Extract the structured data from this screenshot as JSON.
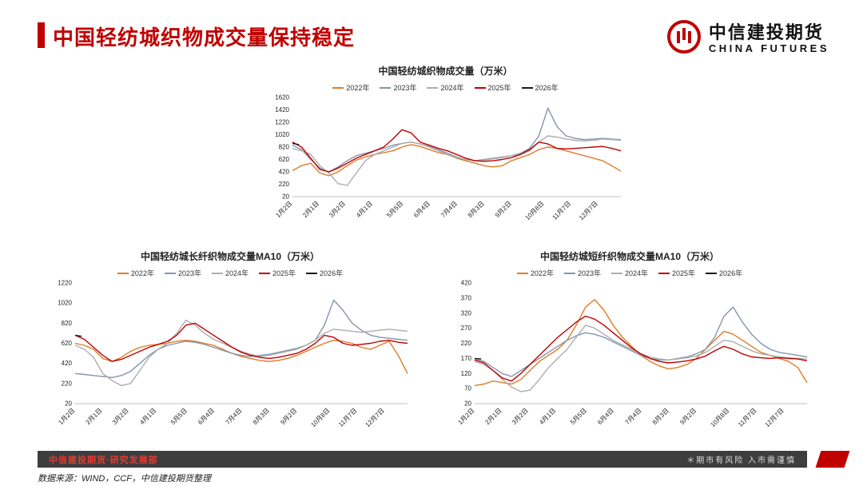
{
  "page": {
    "title": "中国轻纺城织物成交量保持稳定",
    "logo_cn": "中信建投期货",
    "logo_en": "CHINA FUTURES",
    "footer_left": "中信建投期货·研究发展部",
    "footer_right": "＊期市有风险  入市需谨慎",
    "source_note": "数据来源：WIND，CCF，中信建投期货整理"
  },
  "colors": {
    "accent": "#C00000",
    "footer_bar": "#3D3D3D"
  },
  "chart_data": [
    {
      "type": "line",
      "title": "中国轻纺城织物成交量（万米）",
      "xlabel": "",
      "ylabel": "",
      "grid": false,
      "legend_position": "top",
      "ylim": [
        20,
        1620
      ],
      "yticks": [
        20,
        220,
        420,
        620,
        820,
        1020,
        1220,
        1420,
        1620
      ],
      "x_ticks": [
        "1月2日",
        "2月1日",
        "3月2日",
        "4月1日",
        "5月5日",
        "6月4日",
        "7月4日",
        "8月3日",
        "9月2日",
        "10月8日",
        "11月7日",
        "12月7日"
      ],
      "x_tick_pos": [
        0,
        0.082,
        0.162,
        0.245,
        0.338,
        0.42,
        0.503,
        0.585,
        0.668,
        0.767,
        0.849,
        0.931
      ],
      "series_colors": [
        "#E07B28",
        "#8496AE",
        "#ADADAD",
        "#C00000",
        "#1A1A1A"
      ],
      "series": [
        {
          "name": "2022年",
          "values": [
            440,
            520,
            560,
            400,
            360,
            420,
            520,
            610,
            660,
            700,
            730,
            760,
            820,
            860,
            830,
            780,
            730,
            700,
            640,
            600,
            560,
            520,
            500,
            520,
            600,
            650,
            700,
            780,
            820,
            800,
            760,
            720,
            680,
            640,
            600,
            520,
            430
          ]
        },
        {
          "name": "2023年",
          "values": [
            850,
            780,
            620,
            480,
            420,
            500,
            600,
            680,
            720,
            760,
            800,
            850,
            880,
            900,
            870,
            830,
            780,
            720,
            660,
            620,
            600,
            620,
            640,
            660,
            680,
            720,
            800,
            1000,
            1450,
            1150,
            1000,
            960,
            940,
            950,
            960,
            950,
            940
          ]
        },
        {
          "name": "2024年",
          "values": [
            800,
            760,
            700,
            520,
            400,
            230,
            200,
            400,
            600,
            700,
            760,
            820,
            880,
            900,
            870,
            820,
            760,
            700,
            650,
            620,
            600,
            610,
            630,
            650,
            680,
            700,
            760,
            900,
            1000,
            980,
            950,
            930,
            920,
            930,
            950,
            940,
            930
          ]
        },
        {
          "name": "2025年",
          "values": [
            900,
            820,
            640,
            460,
            420,
            480,
            560,
            640,
            700,
            760,
            820,
            950,
            1100,
            1050,
            900,
            850,
            800,
            760,
            700,
            640,
            600,
            590,
            600,
            620,
            650,
            700,
            780,
            900,
            870,
            800,
            790,
            800,
            810,
            820,
            830,
            800,
            760
          ]
        },
        {
          "name": "2026年",
          "values": [
            880,
            860
          ],
          "span": [
            0,
            0.02
          ]
        }
      ]
    },
    {
      "type": "line",
      "title": "中国轻纺城长纤织物成交量MA10（万米）",
      "xlabel": "",
      "ylabel": "",
      "grid": false,
      "legend_position": "top",
      "ylim": [
        20,
        1220
      ],
      "yticks": [
        20,
        220,
        420,
        620,
        820,
        1020,
        1220
      ],
      "x_ticks": [
        "1月2日",
        "2月1日",
        "3月2日",
        "4月1日",
        "5月5日",
        "6月4日",
        "7月4日",
        "8月3日",
        "9月2日",
        "10月8日",
        "11月7日",
        "12月7日"
      ],
      "x_tick_pos": [
        0,
        0.082,
        0.162,
        0.245,
        0.338,
        0.42,
        0.503,
        0.585,
        0.668,
        0.767,
        0.849,
        0.931
      ],
      "series_colors": [
        "#E07B28",
        "#8496AE",
        "#ADADAD",
        "#C00000",
        "#1A1A1A"
      ],
      "series": [
        {
          "name": "2022年",
          "values": [
            620,
            600,
            560,
            470,
            440,
            480,
            540,
            580,
            600,
            610,
            620,
            640,
            650,
            640,
            620,
            600,
            560,
            520,
            490,
            470,
            450,
            440,
            450,
            470,
            500,
            540,
            580,
            620,
            650,
            640,
            620,
            580,
            560,
            600,
            640,
            500,
            320
          ]
        },
        {
          "name": "2023年",
          "values": [
            320,
            310,
            300,
            290,
            280,
            300,
            340,
            420,
            500,
            560,
            600,
            620,
            640,
            630,
            610,
            580,
            550,
            520,
            500,
            490,
            500,
            510,
            530,
            550,
            570,
            600,
            650,
            800,
            1050,
            950,
            820,
            750,
            700,
            680,
            670,
            660,
            650
          ]
        },
        {
          "name": "2024年",
          "values": [
            600,
            560,
            480,
            320,
            250,
            200,
            220,
            350,
            480,
            560,
            620,
            720,
            850,
            800,
            720,
            660,
            620,
            580,
            540,
            510,
            490,
            500,
            520,
            540,
            560,
            600,
            650,
            720,
            760,
            750,
            740,
            730,
            740,
            750,
            760,
            750,
            740
          ]
        },
        {
          "name": "2025年",
          "values": [
            700,
            660,
            580,
            500,
            440,
            460,
            500,
            540,
            580,
            610,
            640,
            700,
            800,
            820,
            760,
            700,
            640,
            580,
            530,
            500,
            480,
            470,
            480,
            500,
            520,
            560,
            620,
            700,
            680,
            620,
            600,
            610,
            620,
            640,
            650,
            630,
            620
          ]
        },
        {
          "name": "2026年",
          "values": [
            700,
            690
          ],
          "span": [
            0,
            0.02
          ]
        }
      ]
    },
    {
      "type": "line",
      "title": "中国轻纺城短纤织物成交量MA10（万米）",
      "xlabel": "",
      "ylabel": "",
      "grid": false,
      "legend_position": "top",
      "ylim": [
        20,
        420
      ],
      "yticks": [
        20,
        70,
        120,
        170,
        220,
        270,
        320,
        370,
        420
      ],
      "x_ticks": [
        "1月2日",
        "2月1日",
        "3月2日",
        "4月1日",
        "5月5日",
        "6月4日",
        "7月4日",
        "8月3日",
        "9月2日",
        "10月8日",
        "11月7日",
        "12月7日"
      ],
      "x_tick_pos": [
        0,
        0.082,
        0.162,
        0.245,
        0.338,
        0.42,
        0.503,
        0.585,
        0.668,
        0.767,
        0.849,
        0.931
      ],
      "series_colors": [
        "#E07B28",
        "#8496AE",
        "#ADADAD",
        "#C00000",
        "#1A1A1A"
      ],
      "series": [
        {
          "name": "2022年",
          "values": [
            80,
            85,
            95,
            90,
            85,
            100,
            130,
            160,
            180,
            200,
            230,
            280,
            340,
            365,
            330,
            280,
            240,
            210,
            180,
            160,
            145,
            135,
            140,
            150,
            170,
            200,
            230,
            260,
            250,
            230,
            210,
            190,
            180,
            170,
            160,
            140,
            90
          ]
        },
        {
          "name": "2023年",
          "values": [
            170,
            160,
            140,
            120,
            110,
            130,
            150,
            170,
            190,
            210,
            230,
            245,
            255,
            250,
            240,
            225,
            210,
            195,
            180,
            170,
            165,
            165,
            170,
            175,
            185,
            200,
            240,
            310,
            340,
            290,
            250,
            220,
            200,
            190,
            185,
            180,
            175
          ]
        },
        {
          "name": "2024年",
          "values": [
            160,
            150,
            130,
            100,
            75,
            60,
            65,
            100,
            140,
            170,
            200,
            240,
            280,
            270,
            250,
            230,
            215,
            200,
            185,
            175,
            168,
            165,
            168,
            172,
            178,
            190,
            210,
            230,
            225,
            210,
            195,
            185,
            180,
            175,
            172,
            170,
            168
          ]
        },
        {
          "name": "2025年",
          "values": [
            165,
            155,
            130,
            105,
            95,
            120,
            150,
            180,
            210,
            240,
            265,
            290,
            310,
            300,
            280,
            255,
            230,
            205,
            185,
            170,
            160,
            155,
            158,
            162,
            168,
            178,
            195,
            210,
            200,
            185,
            175,
            172,
            170,
            172,
            170,
            168,
            162
          ]
        },
        {
          "name": "2026年",
          "values": [
            170,
            168
          ],
          "span": [
            0,
            0.02
          ]
        }
      ]
    }
  ]
}
